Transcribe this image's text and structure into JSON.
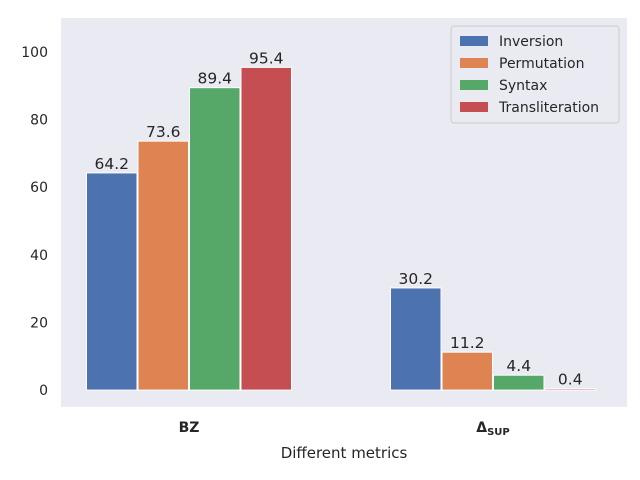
{
  "chart_data": {
    "type": "bar",
    "title": "",
    "xlabel": "Different metrics",
    "ylabel": "",
    "categories": [
      "BZ",
      "Δ"
    ],
    "category_subscripts": [
      "",
      "SUP"
    ],
    "yticks": [
      0,
      20,
      40,
      60,
      80,
      100
    ],
    "ylim": [
      -5,
      110
    ],
    "grid": false,
    "legend_position": "top-right",
    "series": [
      {
        "name": "Inversion",
        "color": "#4c72b0",
        "values": [
          64.2,
          30.2
        ],
        "labels": [
          "64.2",
          "30.2"
        ]
      },
      {
        "name": "Permutation",
        "color": "#dd8452",
        "values": [
          73.6,
          11.2
        ],
        "labels": [
          "73.6",
          "11.2"
        ]
      },
      {
        "name": "Syntax",
        "color": "#55a868",
        "values": [
          89.4,
          4.4
        ],
        "labels": [
          "89.4",
          "4.4"
        ]
      },
      {
        "name": "Transliteration",
        "color": "#c44e52",
        "values": [
          95.4,
          0.4
        ],
        "labels": [
          "95.4",
          "0.4"
        ]
      }
    ],
    "plot_background": "#eaeaf2"
  }
}
